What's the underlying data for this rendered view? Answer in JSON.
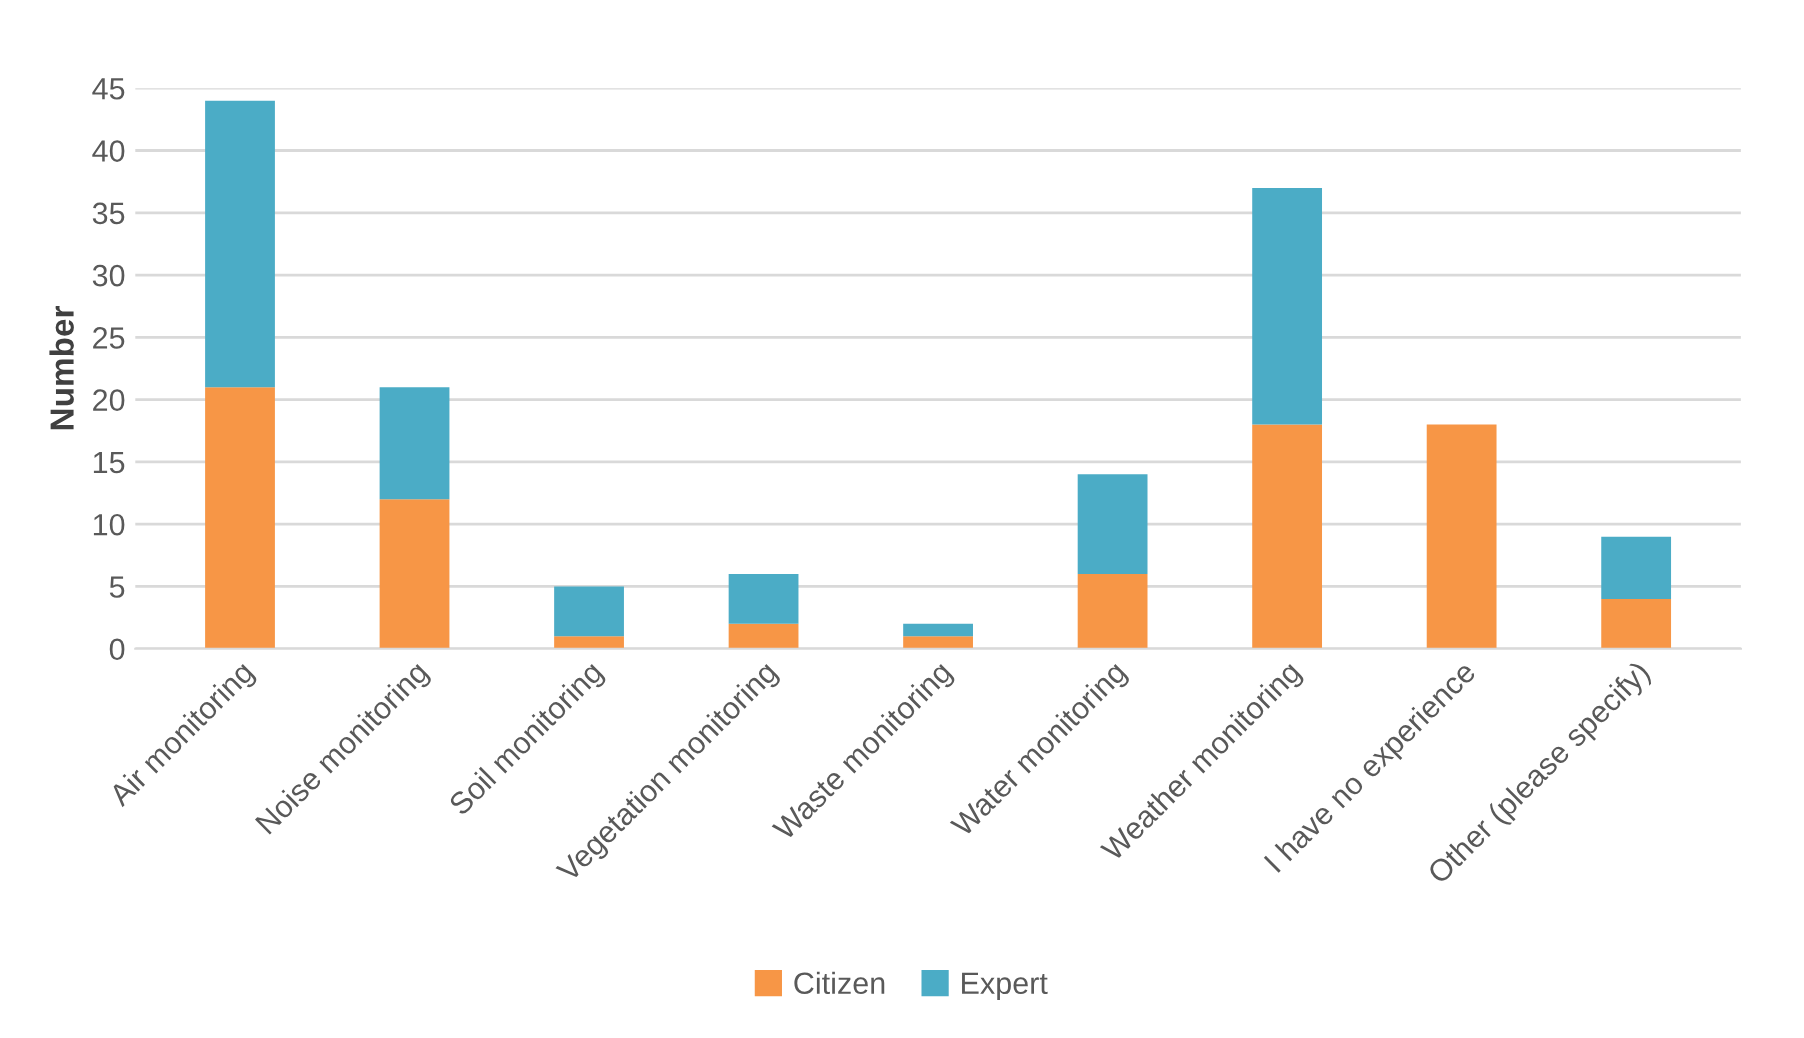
{
  "chart_data": {
    "type": "bar",
    "stacked": true,
    "ylabel": "Number",
    "categories": [
      "Air monitoring",
      "Noise monitoring",
      "Soil monitoring",
      "Vegetation monitoring",
      "Waste monitoring",
      "Water monitoring",
      "Weather monitoring",
      "I have no experience",
      "Other (please specify)"
    ],
    "series": [
      {
        "name": "Citizen",
        "color": "#f79646",
        "values": [
          21,
          12,
          1,
          2,
          1,
          6,
          18,
          18,
          4
        ]
      },
      {
        "name": "Expert",
        "color": "#4bacc6",
        "values": [
          23,
          9,
          4,
          4,
          1,
          8,
          19,
          0,
          5
        ]
      }
    ],
    "ylim": [
      0,
      45
    ],
    "yticks": [
      0,
      5,
      10,
      15,
      20,
      25,
      30,
      35,
      40,
      45
    ],
    "grid": "y",
    "legend": "bottom"
  }
}
